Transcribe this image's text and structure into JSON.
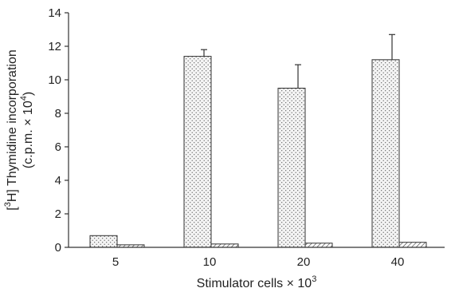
{
  "chart_data": {
    "type": "bar",
    "categories": [
      "5",
      "10",
      "20",
      "40"
    ],
    "series": [
      {
        "pattern": "dotted",
        "fill_color": "#f4f4f4",
        "dot_color": "#444444",
        "values": [
          0.7,
          11.4,
          9.5,
          11.2
        ],
        "errors": [
          0.0,
          0.4,
          1.4,
          1.5
        ]
      },
      {
        "pattern": "hatched",
        "fill_color": "#ffffff",
        "line_color": "#333333",
        "values": [
          0.15,
          0.2,
          0.25,
          0.3
        ],
        "errors": [
          0.0,
          0.0,
          0.0,
          0.0
        ]
      }
    ],
    "ylim": [
      0,
      14
    ],
    "yticks": [
      "0",
      "2",
      "4",
      "6",
      "8",
      "10",
      "12",
      "14"
    ],
    "xlabel": {
      "text": "Stimulator cells × 10",
      "sup": "3"
    },
    "ylabel": {
      "line1": [
        "[",
        "3",
        "H] Thymidine incorporation"
      ],
      "line2": [
        "(c.p.m. × 10",
        "4",
        ")"
      ]
    },
    "grid": false,
    "legend": false
  }
}
